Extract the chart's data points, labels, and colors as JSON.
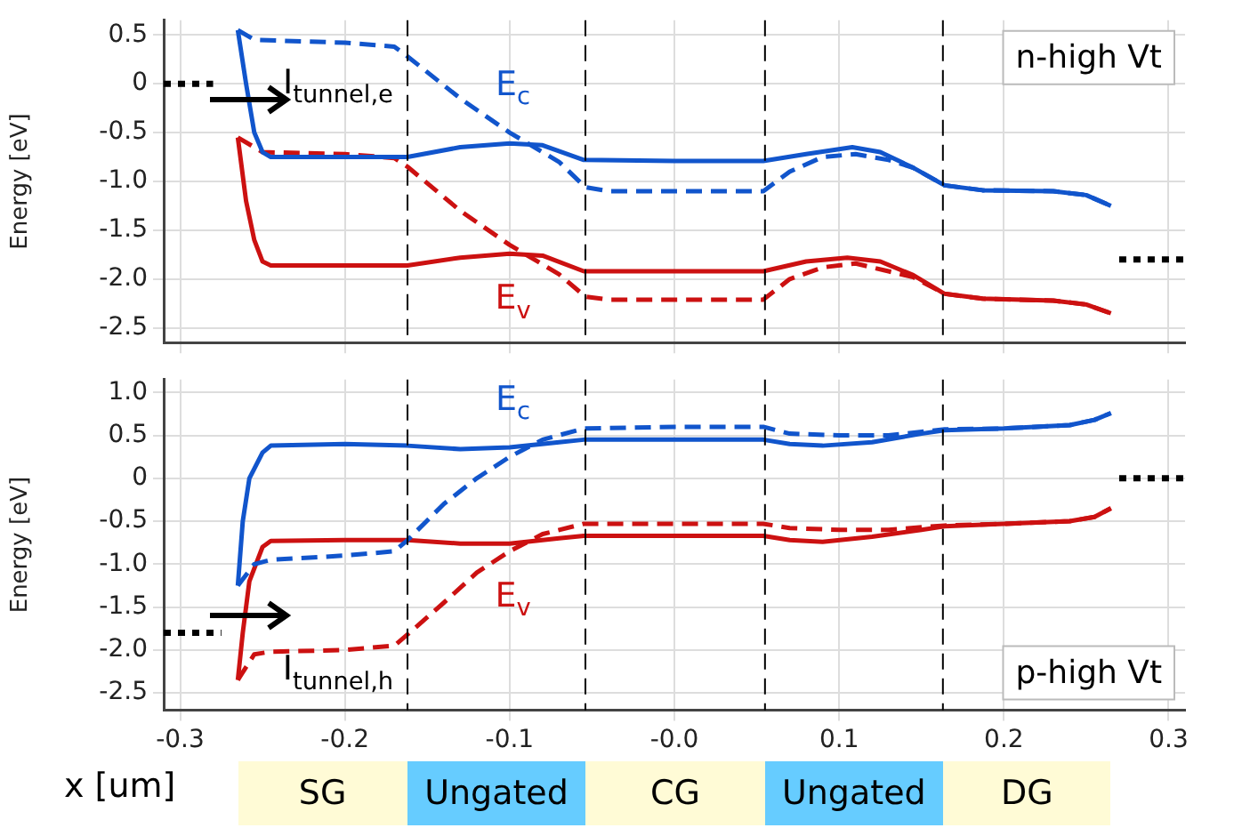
{
  "chart_data": [
    {
      "type": "line",
      "title": "n-high Vt",
      "ylabel": "Energy [eV]",
      "xlim": [
        -0.31,
        0.31
      ],
      "ylim": [
        -2.65,
        0.65
      ],
      "xticks": [
        -0.3,
        -0.2,
        -0.1,
        0,
        0.1,
        0.2,
        0.3
      ],
      "yticks": [
        0.5,
        0,
        -0.5,
        {
          "value": -1,
          "label": "-1.0"
        },
        -1.5,
        {
          "value": -2,
          "label": "-2.0"
        },
        -2.5
      ],
      "tick_labels": "y",
      "grid": true,
      "marker": "none",
      "ref_lines": [
        {
          "axis": "x",
          "value": -0.162,
          "color": "#000000",
          "line_style": "dashed"
        },
        {
          "axis": "x",
          "value": -0.054,
          "color": "#000000",
          "line_style": "dashed"
        },
        {
          "axis": "x",
          "value": 0.055,
          "color": "#000000",
          "line_style": "dashed"
        },
        {
          "axis": "x",
          "value": 0.163,
          "color": "#000000",
          "line_style": "dashed"
        }
      ],
      "annotations": [
        "I$_{tunnel,e}$"
      ],
      "series": [
        {
          "name": "E$_{c}$",
          "color": "#1155cc",
          "line_style": "solid",
          "x": [
            -0.265,
            -0.26,
            -0.255,
            -0.25,
            -0.245,
            -0.2,
            -0.162,
            -0.13,
            -0.1,
            -0.08,
            -0.055,
            0,
            0.054,
            0.08,
            0.108,
            0.125,
            0.145,
            0.164,
            0.187,
            0.23,
            0.25,
            0.265
          ],
          "values": [
            0.55,
            0.0,
            -0.5,
            -0.7,
            -0.75,
            -0.75,
            -0.75,
            -0.65,
            -0.61,
            -0.63,
            -0.78,
            -0.79,
            -0.79,
            -0.72,
            -0.65,
            -0.7,
            -0.86,
            -1.04,
            -1.09,
            -1.1,
            -1.14,
            -1.25
          ]
        },
        {
          "color": "#1155cc",
          "line_style": "dashed",
          "x": [
            -0.265,
            -0.255,
            -0.2,
            -0.17,
            -0.162,
            -0.13,
            -0.1,
            -0.07,
            -0.054,
            -0.04,
            0.054,
            0.07,
            0.09,
            0.11,
            0.13,
            0.145,
            0.164,
            0.187,
            0.23,
            0.25,
            0.265
          ],
          "values": [
            0.55,
            0.45,
            0.42,
            0.38,
            0.28,
            -0.15,
            -0.5,
            -0.8,
            -1.06,
            -1.1,
            -1.1,
            -0.9,
            -0.75,
            -0.72,
            -0.78,
            -0.86,
            -1.04,
            -1.09,
            -1.1,
            -1.14,
            -1.25
          ]
        },
        {
          "name": "E$_{v}$",
          "color": "#cc1111",
          "line_style": "solid",
          "x": [
            -0.265,
            -0.26,
            -0.255,
            -0.25,
            -0.245,
            -0.2,
            -0.162,
            -0.13,
            -0.1,
            -0.08,
            -0.055,
            0,
            0.054,
            0.08,
            0.105,
            0.125,
            0.145,
            0.164,
            0.187,
            0.23,
            0.25,
            0.265
          ],
          "values": [
            -0.55,
            -1.2,
            -1.6,
            -1.82,
            -1.86,
            -1.86,
            -1.86,
            -1.78,
            -1.74,
            -1.76,
            -1.92,
            -1.92,
            -1.92,
            -1.82,
            -1.78,
            -1.82,
            -1.96,
            -2.15,
            -2.2,
            -2.22,
            -2.26,
            -2.35
          ]
        },
        {
          "color": "#cc1111",
          "line_style": "dashed",
          "x": [
            -0.265,
            -0.25,
            -0.2,
            -0.17,
            -0.162,
            -0.13,
            -0.1,
            -0.07,
            -0.054,
            -0.04,
            0.054,
            0.07,
            0.09,
            0.11,
            0.13,
            0.145,
            0.164,
            0.187,
            0.23,
            0.25,
            0.265
          ],
          "values": [
            -0.55,
            -0.7,
            -0.72,
            -0.76,
            -0.85,
            -1.3,
            -1.65,
            -1.95,
            -2.18,
            -2.21,
            -2.21,
            -2.0,
            -1.88,
            -1.84,
            -1.92,
            -1.98,
            -2.15,
            -2.2,
            -2.22,
            -2.26,
            -2.35
          ]
        },
        {
          "color": "#000000",
          "line_style": "dotted",
          "x": [
            -0.31,
            -0.28
          ],
          "values": [
            0,
            0
          ]
        },
        {
          "color": "#000000",
          "line_style": "dotted",
          "x": [
            0.27,
            0.31
          ],
          "values": [
            -1.8,
            -1.8
          ]
        }
      ]
    },
    {
      "type": "line",
      "title": "p-high Vt",
      "ylabel": "Energy [eV]",
      "xlabel": "x [um]",
      "xlim": [
        -0.31,
        0.31
      ],
      "ylim": [
        -2.7,
        1.15
      ],
      "xticks": [
        -0.3,
        -0.2,
        -0.1,
        {
          "value": 0,
          "label": "-0.0"
        },
        0.1,
        0.2,
        0.3
      ],
      "yticks": [
        {
          "value": 1,
          "label": "1.0"
        },
        0.5,
        0,
        -0.5,
        {
          "value": -1,
          "label": "-1.0"
        },
        -1.5,
        {
          "value": -2,
          "label": "-2.0"
        },
        -2.5
      ],
      "grid": true,
      "marker": "none",
      "ref_lines": [
        {
          "axis": "x",
          "value": -0.162,
          "color": "#000000",
          "line_style": "dashed"
        },
        {
          "axis": "x",
          "value": -0.054,
          "color": "#000000",
          "line_style": "dashed"
        },
        {
          "axis": "x",
          "value": 0.055,
          "color": "#000000",
          "line_style": "dashed"
        },
        {
          "axis": "x",
          "value": 0.163,
          "color": "#000000",
          "line_style": "dashed"
        }
      ],
      "annotations": [
        "I$_{tunnel,h}$",
        "SG",
        "Ungated",
        "CG",
        "Ungated",
        "DG"
      ],
      "series": [
        {
          "name": "E$_{c}$",
          "color": "#1155cc",
          "line_style": "solid",
          "x": [
            -0.265,
            -0.262,
            -0.258,
            -0.25,
            -0.245,
            -0.2,
            -0.162,
            -0.13,
            -0.1,
            -0.07,
            -0.055,
            0,
            0.054,
            0.07,
            0.09,
            0.12,
            0.15,
            0.164,
            0.2,
            0.24,
            0.255,
            0.265
          ],
          "values": [
            -1.25,
            -0.5,
            0.0,
            0.3,
            0.38,
            0.4,
            0.38,
            0.34,
            0.36,
            0.42,
            0.45,
            0.45,
            0.45,
            0.4,
            0.38,
            0.42,
            0.52,
            0.56,
            0.58,
            0.62,
            0.68,
            0.76
          ]
        },
        {
          "color": "#1155cc",
          "line_style": "dashed",
          "x": [
            -0.265,
            -0.255,
            -0.245,
            -0.2,
            -0.17,
            -0.162,
            -0.14,
            -0.12,
            -0.1,
            -0.08,
            -0.055,
            0,
            0.054,
            0.07,
            0.1,
            0.13,
            0.164,
            0.2,
            0.24,
            0.255,
            0.265
          ],
          "values": [
            -1.25,
            -1.0,
            -0.95,
            -0.9,
            -0.85,
            -0.72,
            -0.3,
            0.0,
            0.25,
            0.45,
            0.58,
            0.6,
            0.6,
            0.52,
            0.5,
            0.5,
            0.57,
            0.58,
            0.62,
            0.68,
            0.76
          ]
        },
        {
          "name": "E$_{v}$",
          "color": "#cc1111",
          "line_style": "solid",
          "x": [
            -0.265,
            -0.262,
            -0.258,
            -0.25,
            -0.245,
            -0.2,
            -0.162,
            -0.13,
            -0.1,
            -0.07,
            -0.055,
            0,
            0.054,
            0.07,
            0.09,
            0.12,
            0.15,
            0.164,
            0.2,
            0.24,
            0.255,
            0.265
          ],
          "values": [
            -2.35,
            -1.8,
            -1.2,
            -0.8,
            -0.73,
            -0.72,
            -0.72,
            -0.76,
            -0.76,
            -0.7,
            -0.67,
            -0.67,
            -0.67,
            -0.72,
            -0.74,
            -0.68,
            -0.6,
            -0.56,
            -0.53,
            -0.5,
            -0.45,
            -0.35
          ]
        },
        {
          "color": "#cc1111",
          "line_style": "dashed",
          "x": [
            -0.265,
            -0.255,
            -0.245,
            -0.2,
            -0.17,
            -0.162,
            -0.14,
            -0.12,
            -0.1,
            -0.08,
            -0.055,
            0,
            0.054,
            0.07,
            0.1,
            0.13,
            0.164,
            0.2,
            0.24,
            0.255,
            0.265
          ],
          "values": [
            -2.35,
            -2.05,
            -2.02,
            -2.0,
            -1.95,
            -1.82,
            -1.45,
            -1.1,
            -0.85,
            -0.65,
            -0.53,
            -0.53,
            -0.53,
            -0.58,
            -0.6,
            -0.6,
            -0.55,
            -0.53,
            -0.5,
            -0.45,
            -0.35
          ]
        },
        {
          "color": "#000000",
          "line_style": "dotted",
          "x": [
            -0.31,
            -0.275
          ],
          "values": [
            -1.8,
            -1.8
          ]
        },
        {
          "color": "#000000",
          "line_style": "dotted",
          "x": [
            0.27,
            0.31
          ],
          "values": [
            0,
            0
          ]
        }
      ]
    }
  ]
}
